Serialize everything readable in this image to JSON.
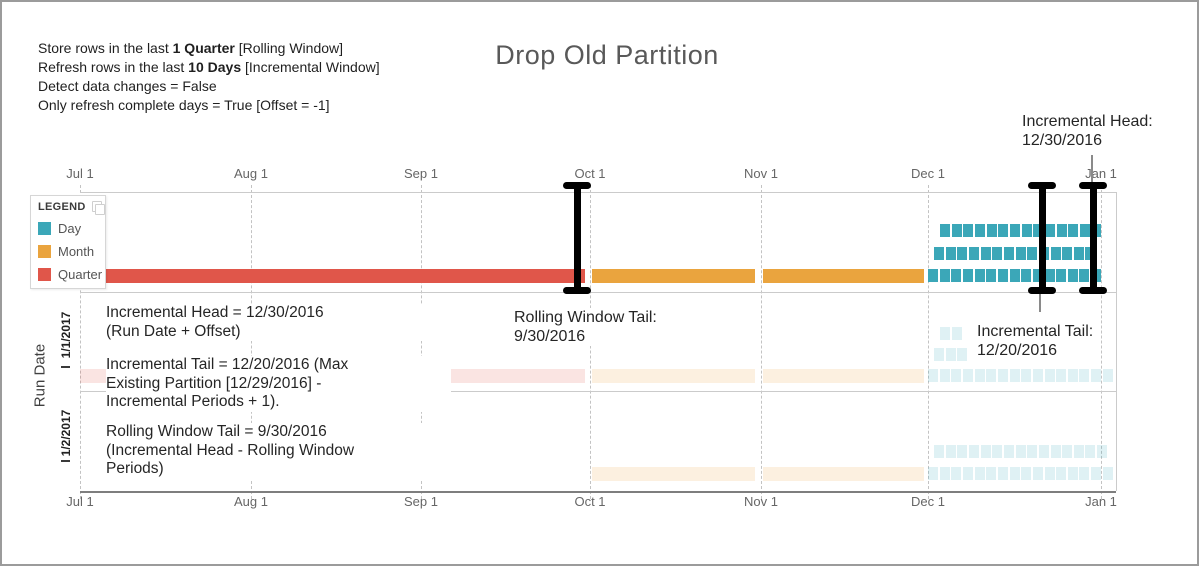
{
  "header": {
    "settings_lines": [
      {
        "prefix": "Store rows in the last ",
        "bold": "1 Quarter",
        "suffix": " [Rolling Window]"
      },
      {
        "prefix": "Refresh rows in the last ",
        "bold": "10 Days",
        "suffix": " [Incremental Window]"
      },
      {
        "prefix": "Detect data changes = False",
        "bold": "",
        "suffix": ""
      },
      {
        "prefix": "Only refresh complete days = True [Offset = -1]",
        "bold": "",
        "suffix": ""
      }
    ],
    "title": "Drop Old Partition"
  },
  "annotations": {
    "incremental_head_top": "Incremental Head:\n12/30/2016",
    "incremental_head_mid": "Incremental Head = 12/30/2016\n(Run Date + Offset)",
    "incremental_tail_mid": "Incremental Tail = 12/20/2016 (Max\nExisting Partition [12/29/2016] -\nIncremental Periods + 1).",
    "rolling_window_tail_mid": "Rolling Window Tail = 9/30/2016\n(Incremental Head - Rolling Window\nPeriods)",
    "rolling_window_tail_plot": "Rolling Window Tail:\n9/30/2016",
    "incremental_tail_plot": "Incremental Tail:\n12/20/2016"
  },
  "legend": {
    "title": "LEGEND",
    "items": [
      {
        "label": "Day",
        "color": "#3BA7B8"
      },
      {
        "label": "Month",
        "color": "#EAA43E"
      },
      {
        "label": "Quarter",
        "color": "#E0564A"
      }
    ]
  },
  "axes": {
    "x_tick_labels": [
      "Jul 1",
      "Aug 1",
      "Sep 1",
      "Oct 1",
      "Nov 1",
      "Dec 1",
      "Jan 1"
    ],
    "y_label": "Run Date",
    "y_tick_labels": [
      "1/1/2017",
      "1/2/2017"
    ]
  },
  "chart_data": {
    "type": "bar",
    "subtype": "partition-timeline-gantt",
    "title": "Drop Old Partition",
    "xlabel": "",
    "ylabel": "Run Date",
    "x_range": [
      "Jul 1",
      "Jan 1"
    ],
    "x_ticks": [
      "Jul 1",
      "Aug 1",
      "Sep 1",
      "Oct 1",
      "Nov 1",
      "Dec 1",
      "Jan 1"
    ],
    "grid": "dashed-vertical",
    "legend_position": "top-left",
    "legend_entries": [
      "Day",
      "Month",
      "Quarter"
    ],
    "series": [
      {
        "name": "current-partitions",
        "faded": false,
        "quarter_bars": [
          {
            "start": "7/1/2016",
            "end": "9/30/2016"
          }
        ],
        "month_bars": [
          {
            "start": "10/1/2016",
            "end": "10/31/2016"
          },
          {
            "start": "11/1/2016",
            "end": "11/30/2016"
          }
        ],
        "day_square_rows": [
          {
            "row": "top",
            "count": 14
          },
          {
            "row": "middle",
            "count": 14
          },
          {
            "row": "bottom",
            "count": 15
          }
        ]
      },
      {
        "name": "1/1/2017",
        "faded": true,
        "quarter_bars": [
          {
            "start": "7/1/2016",
            "end": "9/30/2016"
          }
        ],
        "month_bars": [
          {
            "start": "10/1/2016",
            "end": "10/31/2016"
          },
          {
            "start": "11/1/2016",
            "end": "11/30/2016"
          }
        ],
        "day_square_rows": [
          {
            "row": "new-a",
            "count": 2
          },
          {
            "row": "new-b",
            "count": 3
          },
          {
            "row": "bottom",
            "count": 16
          }
        ]
      },
      {
        "name": "1/2/2017",
        "faded": true,
        "quarter_bars": [],
        "month_bars": [
          {
            "start": "10/1/2016",
            "end": "10/31/2016"
          },
          {
            "start": "11/1/2016",
            "end": "11/30/2016"
          }
        ],
        "day_square_rows": [
          {
            "row": "new",
            "count": 15
          },
          {
            "row": "bottom",
            "count": 16
          }
        ]
      }
    ],
    "markers": [
      {
        "type": "i-beam",
        "label": "Rolling Window Tail",
        "date": "9/30/2016"
      },
      {
        "type": "i-beam",
        "label": "Incremental Tail",
        "date": "12/20/2016"
      },
      {
        "type": "i-beam",
        "label": "Incremental Head",
        "date": "12/30/2016"
      }
    ]
  }
}
